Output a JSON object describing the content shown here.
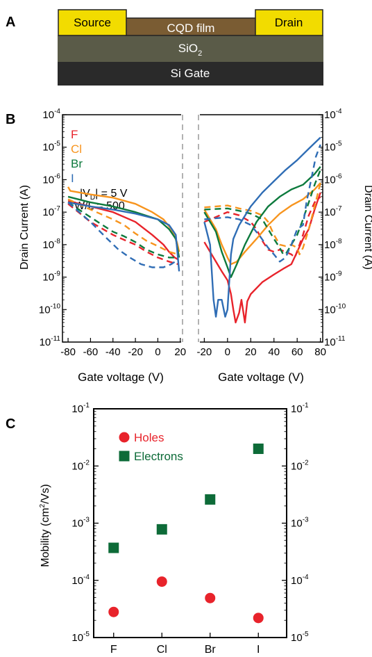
{
  "panels": {
    "a": {
      "label": "A",
      "layers": {
        "source": "Source",
        "drain": "Drain",
        "film": "CQD film",
        "oxide_base": "SiO",
        "oxide_sub": "2",
        "gate": "Si Gate"
      },
      "colors": {
        "electrode": "#f2dc00",
        "film": "#7a5c33",
        "oxide": "#5a5b48",
        "gate": "#2a2a2a"
      }
    },
    "b": {
      "label": "B"
    },
    "c": {
      "label": "C"
    }
  },
  "chart_data": [
    {
      "type": "line",
      "panel": "B-left",
      "xlabel": "Gate voltage (V)",
      "ylabel": "Drain Current (A)",
      "xlim": [
        -85,
        22
      ],
      "ylim_exp": [
        -11,
        -4
      ],
      "xticks": [
        -80,
        -60,
        -40,
        -20,
        0,
        20
      ],
      "yscale": "log",
      "annotations": {
        "vd_a": "|V",
        "vd_sub": "D",
        "vd_b": "| = 5 V",
        "wl": "W/L = 500"
      },
      "series": [
        {
          "name": "F",
          "color": "#e8232b",
          "forward": [
            [
              -80,
              2.2e-07
            ],
            [
              -60,
              1.5e-07
            ],
            [
              -40,
              1e-07
            ],
            [
              -20,
              5e-08
            ],
            [
              -5,
              2e-08
            ],
            [
              5,
              1e-08
            ],
            [
              10,
              6e-09
            ],
            [
              15,
              4e-09
            ],
            [
              18,
              3.5e-09
            ]
          ],
          "reverse": [
            [
              -80,
              1.8e-07
            ],
            [
              -60,
              5e-08
            ],
            [
              -40,
              2e-08
            ],
            [
              -30,
              1.4e-08
            ],
            [
              -20,
              1e-08
            ],
            [
              -10,
              6e-09
            ],
            [
              0,
              4e-09
            ],
            [
              10,
              3e-09
            ],
            [
              18,
              2.5e-09
            ]
          ]
        },
        {
          "name": "Cl",
          "color": "#f7941d",
          "forward": [
            [
              -80,
              6e-07
            ],
            [
              -78,
              4.5e-07
            ],
            [
              -60,
              3.5e-07
            ],
            [
              -40,
              2.8e-07
            ],
            [
              -20,
              1.8e-07
            ],
            [
              -5,
              1e-07
            ],
            [
              5,
              6e-08
            ],
            [
              12,
              3e-08
            ],
            [
              17,
              1.2e-08
            ],
            [
              19,
              6e-09
            ]
          ],
          "reverse": [
            [
              -80,
              2.5e-07
            ],
            [
              -60,
              1.2e-07
            ],
            [
              -40,
              6e-08
            ],
            [
              -30,
              4e-08
            ],
            [
              -20,
              2.2e-08
            ],
            [
              -10,
              1.3e-08
            ],
            [
              0,
              9e-09
            ],
            [
              10,
              6e-09
            ],
            [
              18,
              5e-09
            ]
          ]
        },
        {
          "name": "Br",
          "color": "#0d7a3d",
          "forward": [
            [
              -80,
              3e-07
            ],
            [
              -60,
              2e-07
            ],
            [
              -40,
              1.5e-07
            ],
            [
              -20,
              1e-07
            ],
            [
              0,
              6e-08
            ],
            [
              10,
              3e-08
            ],
            [
              16,
              1.5e-08
            ],
            [
              19,
              4e-09
            ]
          ],
          "reverse": [
            [
              -80,
              2e-07
            ],
            [
              -60,
              7e-08
            ],
            [
              -40,
              2.5e-08
            ],
            [
              -30,
              1.8e-08
            ],
            [
              -20,
              1.2e-08
            ],
            [
              -10,
              7e-09
            ],
            [
              0,
              5e-09
            ],
            [
              10,
              4e-09
            ],
            [
              18,
              4e-09
            ]
          ]
        },
        {
          "name": "I",
          "color": "#2f6db5",
          "forward": [
            [
              -80,
              2e-07
            ],
            [
              -60,
              1.5e-07
            ],
            [
              -40,
              1.2e-07
            ],
            [
              -20,
              9e-08
            ],
            [
              0,
              6e-08
            ],
            [
              10,
              4e-08
            ],
            [
              16,
              2e-08
            ],
            [
              19,
              1.5e-09
            ]
          ],
          "reverse": [
            [
              -80,
              2e-07
            ],
            [
              -60,
              5e-08
            ],
            [
              -45,
              1.5e-08
            ],
            [
              -35,
              7e-09
            ],
            [
              -25,
              4e-09
            ],
            [
              -15,
              2.5e-09
            ],
            [
              -5,
              2e-09
            ],
            [
              5,
              2e-09
            ],
            [
              12,
              2.5e-09
            ],
            [
              18,
              3.5e-09
            ]
          ]
        }
      ]
    },
    {
      "type": "line",
      "panel": "B-right",
      "xlabel": "Gate voltage (V)",
      "ylabel": "Drain Current (A)",
      "xlim": [
        -25,
        82
      ],
      "ylim_exp": [
        -11,
        -4
      ],
      "xticks": [
        -20,
        0,
        20,
        40,
        60,
        80
      ],
      "yscale": "log",
      "series": [
        {
          "name": "F",
          "color": "#e8232b",
          "forward": [
            [
              -20,
              1.2e-08
            ],
            [
              -15,
              6e-09
            ],
            [
              -10,
              3e-09
            ],
            [
              -5,
              1.5e-09
            ],
            [
              0,
              8e-10
            ],
            [
              3,
              3e-10
            ],
            [
              5,
              1e-10
            ],
            [
              7,
              4e-11
            ],
            [
              10,
              8e-11
            ],
            [
              12,
              2e-10
            ],
            [
              15,
              4e-11
            ],
            [
              17,
              1.8e-10
            ],
            [
              20,
              3e-10
            ],
            [
              30,
              7e-10
            ],
            [
              40,
              1.2e-09
            ],
            [
              48,
              1.8e-09
            ],
            [
              55,
              2.5e-09
            ],
            [
              60,
              6e-09
            ],
            [
              65,
              1.5e-08
            ],
            [
              70,
              3e-08
            ],
            [
              75,
              1.2e-07
            ],
            [
              80,
              4e-07
            ]
          ],
          "reverse": [
            [
              -20,
              5e-08
            ],
            [
              0,
              1e-07
            ],
            [
              10,
              8e-08
            ],
            [
              20,
              5e-08
            ],
            [
              25,
              3e-08
            ],
            [
              30,
              1.3e-08
            ],
            [
              35,
              7e-09
            ],
            [
              40,
              6e-09
            ],
            [
              45,
              7e-09
            ],
            [
              50,
              6e-09
            ],
            [
              55,
              5e-09
            ],
            [
              58,
              4e-09
            ],
            [
              65,
              2e-08
            ],
            [
              70,
              8e-08
            ],
            [
              75,
              2e-07
            ],
            [
              80,
              3e-07
            ]
          ]
        },
        {
          "name": "Cl",
          "color": "#f7941d",
          "forward": [
            [
              -20,
              1.2e-07
            ],
            [
              -10,
              3e-08
            ],
            [
              -5,
              1e-08
            ],
            [
              0,
              4e-09
            ],
            [
              3,
              2.5e-09
            ],
            [
              8,
              3e-09
            ],
            [
              15,
              6e-09
            ],
            [
              25,
              1.5e-08
            ],
            [
              35,
              4e-08
            ],
            [
              45,
              9e-08
            ],
            [
              55,
              1.6e-07
            ],
            [
              65,
              2.5e-07
            ],
            [
              75,
              5e-07
            ],
            [
              80,
              8e-07
            ]
          ],
          "reverse": [
            [
              -20,
              1.4e-07
            ],
            [
              0,
              1.6e-07
            ],
            [
              10,
              1.3e-07
            ],
            [
              20,
              1.1e-07
            ],
            [
              30,
              8e-08
            ],
            [
              35,
              5e-08
            ],
            [
              40,
              2e-08
            ],
            [
              45,
              1e-08
            ],
            [
              50,
              9e-09
            ],
            [
              55,
              1e-08
            ],
            [
              60,
              8e-09
            ],
            [
              62,
              5e-09
            ],
            [
              65,
              8e-09
            ],
            [
              70,
              3e-08
            ],
            [
              75,
              1.5e-07
            ],
            [
              80,
              8e-07
            ]
          ]
        },
        {
          "name": "Br",
          "color": "#0d7a3d",
          "forward": [
            [
              -20,
              1e-07
            ],
            [
              -10,
              2.5e-08
            ],
            [
              -5,
              6e-09
            ],
            [
              0,
              2e-09
            ],
            [
              3,
              1e-09
            ],
            [
              8,
              2.5e-09
            ],
            [
              15,
              1e-08
            ],
            [
              25,
              5e-08
            ],
            [
              35,
              1.5e-07
            ],
            [
              45,
              3e-07
            ],
            [
              55,
              5e-07
            ],
            [
              65,
              7e-07
            ],
            [
              75,
              1.5e-06
            ],
            [
              80,
              2.5e-06
            ]
          ],
          "reverse": [
            [
              -20,
              1.2e-07
            ],
            [
              0,
              1.3e-07
            ],
            [
              10,
              1.1e-07
            ],
            [
              20,
              9e-08
            ],
            [
              30,
              6e-08
            ],
            [
              35,
              3e-08
            ],
            [
              40,
              1.5e-08
            ],
            [
              45,
              8e-09
            ],
            [
              48,
              5e-09
            ],
            [
              50,
              5e-09
            ],
            [
              55,
              1e-08
            ],
            [
              60,
              2e-08
            ],
            [
              65,
              6e-08
            ],
            [
              70,
              2e-07
            ],
            [
              75,
              7e-07
            ],
            [
              80,
              2e-06
            ]
          ]
        },
        {
          "name": "I",
          "color": "#2f6db5",
          "forward": [
            [
              -20,
              5e-08
            ],
            [
              -15,
              1e-08
            ],
            [
              -12,
              2e-10
            ],
            [
              -10,
              6e-11
            ],
            [
              -8,
              2e-10
            ],
            [
              -5,
              2e-10
            ],
            [
              -2,
              6e-11
            ],
            [
              0,
              1e-10
            ],
            [
              3,
              5e-09
            ],
            [
              5,
              1.5e-08
            ],
            [
              10,
              4e-08
            ],
            [
              20,
              1.5e-07
            ],
            [
              30,
              4e-07
            ],
            [
              40,
              9e-07
            ],
            [
              50,
              2e-06
            ],
            [
              60,
              4e-06
            ],
            [
              70,
              9e-06
            ],
            [
              80,
              2e-05
            ]
          ],
          "reverse": [
            [
              -20,
              6e-08
            ],
            [
              0,
              7e-08
            ],
            [
              10,
              6e-08
            ],
            [
              20,
              4e-08
            ],
            [
              28,
              1.8e-08
            ],
            [
              35,
              8e-09
            ],
            [
              40,
              5e-09
            ],
            [
              45,
              3e-09
            ],
            [
              50,
              4e-09
            ],
            [
              55,
              1e-08
            ],
            [
              60,
              3e-08
            ],
            [
              65,
              4e-08
            ],
            [
              68,
              2e-07
            ],
            [
              72,
              1e-06
            ],
            [
              76,
              5e-06
            ],
            [
              80,
              1.2e-05
            ]
          ]
        }
      ]
    },
    {
      "type": "scatter",
      "panel": "C",
      "ylabel_a": "Mobility (cm",
      "ylabel_sup": "2",
      "ylabel_b": "/Vs)",
      "categories": [
        "F",
        "Cl",
        "Br",
        "I"
      ],
      "yscale": "log",
      "ylim_exp": [
        -5,
        -1
      ],
      "legend_placement": "top-left",
      "series": [
        {
          "name": "Holes",
          "marker": "circle",
          "color": "#e8232b",
          "values": [
            2.8e-05,
            9.5e-05,
            4.9e-05,
            2.2e-05
          ]
        },
        {
          "name": "Electrons",
          "marker": "square",
          "color": "#0d6b38",
          "values": [
            0.00037,
            0.00078,
            0.0026,
            0.02
          ]
        }
      ]
    }
  ]
}
